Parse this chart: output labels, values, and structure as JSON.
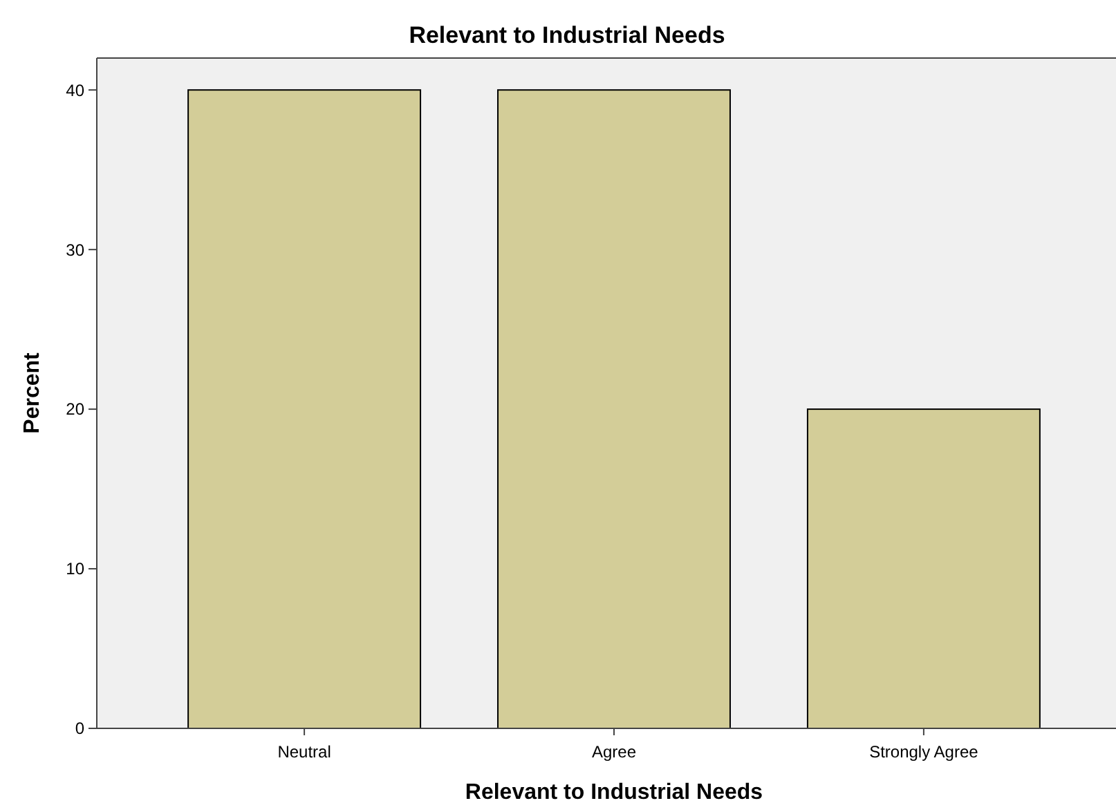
{
  "chart_data": {
    "type": "bar",
    "title": "Relevant to Industrial Needs",
    "xlabel": "Relevant to Industrial Needs",
    "ylabel": "Percent",
    "categories": [
      "Neutral",
      "Agree",
      "Strongly Agree"
    ],
    "values": [
      40,
      40,
      20
    ],
    "color": "#d3cd98",
    "ylim": [
      0,
      42
    ],
    "yticks": [
      0,
      10,
      20,
      30,
      40
    ],
    "grid": false
  }
}
